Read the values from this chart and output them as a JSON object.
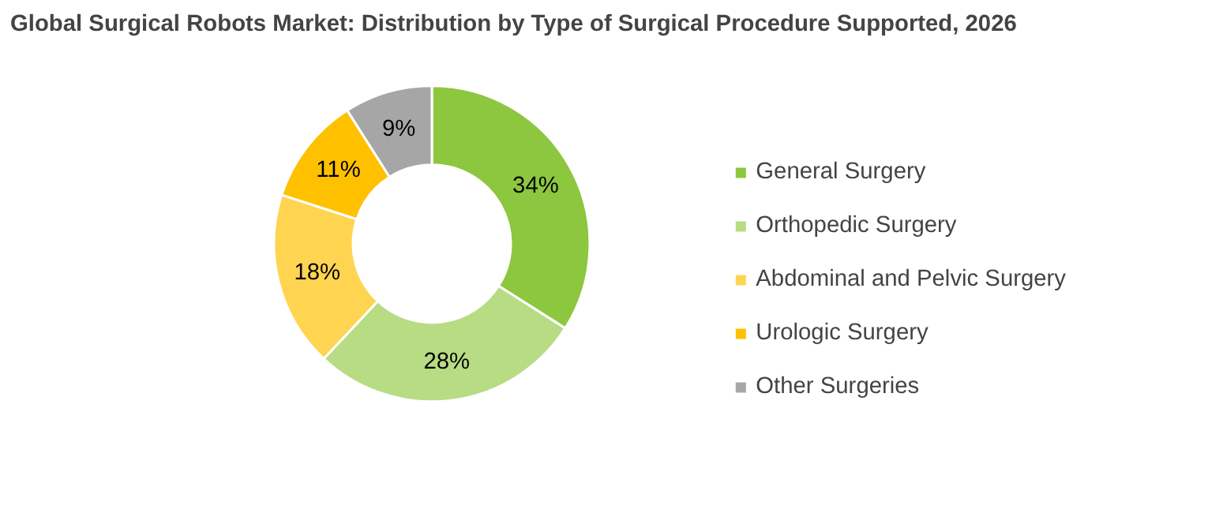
{
  "chart_data": {
    "type": "donut",
    "title": "Global Surgical Robots Market: Distribution by Type of Surgical Procedure Supported, 2026",
    "categories": [
      "General Surgery",
      "Orthopedic Surgery",
      "Abdominal and Pelvic Surgery",
      "Urologic Surgery",
      "Other Surgeries"
    ],
    "values": [
      34,
      28,
      18,
      11,
      9
    ],
    "colors": [
      "#8dc63f",
      "#b7dc84",
      "#ffd450",
      "#ffc000",
      "#a6a6a6"
    ],
    "value_labels": [
      "34%",
      "28%",
      "18%",
      "11%",
      "9%"
    ],
    "legend": "right"
  }
}
